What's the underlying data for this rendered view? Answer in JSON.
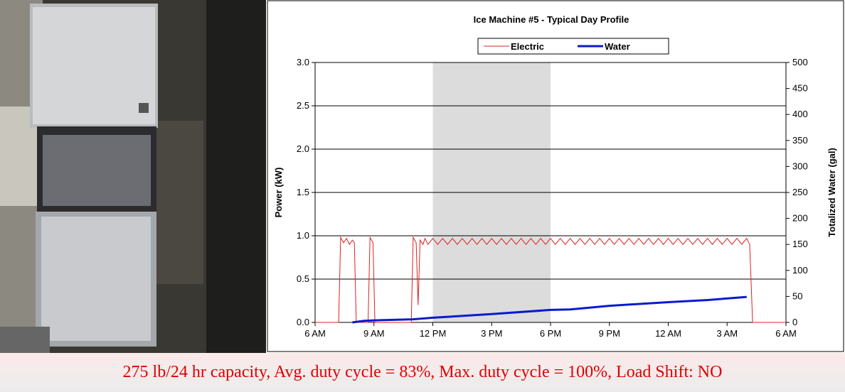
{
  "chart_data": {
    "type": "line",
    "title": "Ice Machine #5 - Typical Day Profile",
    "y_label": "Power (kW)",
    "y2_label": "Totalized Water (gal)",
    "caption": "275 lb/24 hr capacity, Avg. duty cycle = 83%, Max. duty cycle = 100%, Load Shift: NO",
    "xlim": [
      6,
      30
    ],
    "xticks": [
      {
        "value": 6,
        "label": "6 AM"
      },
      {
        "value": 9,
        "label": "9 AM"
      },
      {
        "value": 12,
        "label": "12 PM"
      },
      {
        "value": 15,
        "label": "3 PM"
      },
      {
        "value": 18,
        "label": "6 PM"
      },
      {
        "value": 21,
        "label": "9 PM"
      },
      {
        "value": 24,
        "label": "12 AM"
      },
      {
        "value": 27,
        "label": "3 AM"
      },
      {
        "value": 30,
        "label": "6 AM"
      }
    ],
    "ylim": [
      0,
      3
    ],
    "yticks": [
      {
        "value": 0,
        "label": "0.0"
      },
      0.5,
      {
        "value": 1,
        "label": "1.0"
      },
      1.5,
      {
        "value": 2,
        "label": "2.0"
      },
      2.5,
      {
        "value": 3,
        "label": "3.0"
      }
    ],
    "y2lim": [
      0,
      500
    ],
    "y2ticks": [
      0,
      50,
      100,
      150,
      200,
      250,
      300,
      350,
      400,
      450,
      500
    ],
    "grid": true,
    "shaded_range": [
      12,
      18
    ],
    "series": [
      {
        "name": "Electric",
        "color": "#e02020",
        "x": [
          6,
          7.2,
          7.3,
          7.45,
          7.6,
          7.75,
          7.9,
          8.0,
          8.1,
          8.7,
          8.8,
          8.95,
          9.05,
          10.9,
          11.0,
          11.15,
          11.25,
          11.35,
          11.5,
          11.6,
          11.75,
          12,
          12.25,
          12.5,
          12.75,
          13,
          13.25,
          13.5,
          13.75,
          14,
          14.25,
          14.5,
          14.75,
          15,
          15.25,
          15.5,
          15.75,
          16,
          16.25,
          16.5,
          16.75,
          17,
          17.25,
          17.5,
          17.75,
          18,
          18.25,
          18.5,
          18.75,
          19,
          19.25,
          19.5,
          19.75,
          20,
          20.25,
          20.5,
          20.75,
          21,
          21.25,
          21.5,
          21.75,
          22,
          22.25,
          22.5,
          22.75,
          23,
          23.25,
          23.5,
          23.75,
          24,
          24.25,
          24.5,
          24.75,
          25,
          25.25,
          25.5,
          25.75,
          26,
          26.25,
          26.5,
          26.75,
          27,
          27.25,
          27.5,
          27.75,
          28,
          28.15,
          28.3,
          30
        ],
        "values": [
          0,
          0,
          0.98,
          0.92,
          0.97,
          0.9,
          0.95,
          0.92,
          0,
          0,
          0.98,
          0.92,
          0,
          0,
          0.98,
          0.92,
          0.2,
          0.95,
          0.9,
          0.97,
          0.9,
          0.97,
          0.9,
          0.97,
          0.9,
          0.97,
          0.9,
          0.97,
          0.9,
          0.97,
          0.9,
          0.97,
          0.9,
          0.97,
          0.9,
          0.97,
          0.9,
          0.97,
          0.9,
          0.97,
          0.9,
          0.97,
          0.9,
          0.97,
          0.9,
          0.97,
          0.9,
          0.97,
          0.9,
          0.97,
          0.9,
          0.97,
          0.9,
          0.97,
          0.9,
          0.97,
          0.9,
          0.97,
          0.9,
          0.97,
          0.9,
          0.97,
          0.9,
          0.97,
          0.9,
          0.97,
          0.9,
          0.97,
          0.9,
          0.97,
          0.9,
          0.97,
          0.9,
          0.97,
          0.9,
          0.97,
          0.9,
          0.97,
          0.9,
          0.97,
          0.9,
          0.97,
          0.9,
          0.97,
          0.9,
          0.97,
          0.9,
          0,
          0
        ]
      },
      {
        "name": "Water",
        "color": "#0a1ad0",
        "axis": "y2",
        "x": [
          7.9,
          8.5,
          9,
          11,
          12,
          15,
          18,
          19,
          21,
          24,
          26,
          28
        ],
        "values": [
          0,
          3,
          4,
          6,
          9,
          16,
          24,
          25,
          32,
          39,
          43,
          49
        ]
      }
    ]
  }
}
